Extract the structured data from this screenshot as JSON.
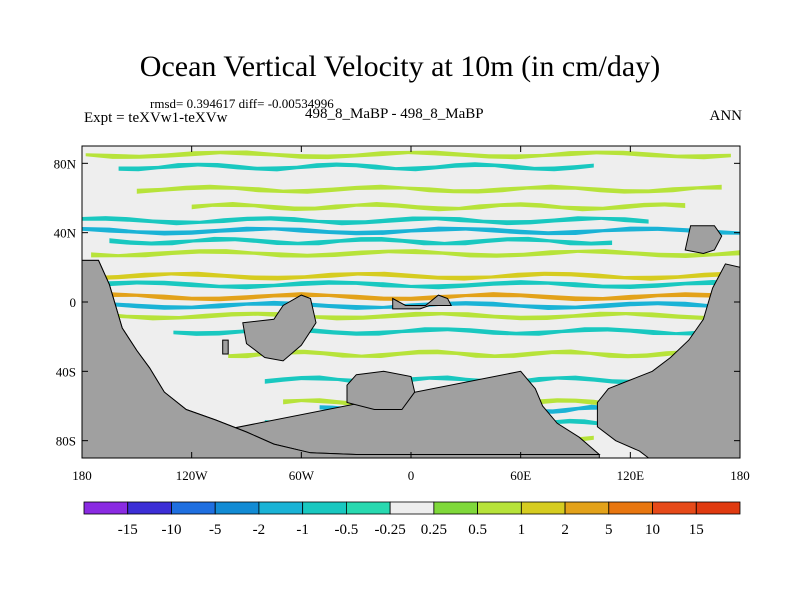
{
  "chart_data": {
    "type": "heatmap",
    "title": "Ocean Vertical Velocity at 10m (in cm/day)",
    "stats_line": "rmsd= 0.394617 diff= -0.00534996",
    "left_label": "Expt = teXVw1-teXVw",
    "center_label": "498_8_MaBP - 498_8_MaBP",
    "right_label": "ANN",
    "xlim": [
      -180,
      180
    ],
    "ylim": [
      -90,
      90
    ],
    "x_ticks": [
      {
        "value": -180,
        "label": "180"
      },
      {
        "value": -120,
        "label": "120W"
      },
      {
        "value": -60,
        "label": "60W"
      },
      {
        "value": 0,
        "label": "0"
      },
      {
        "value": 60,
        "label": "60E"
      },
      {
        "value": 120,
        "label": "120E"
      },
      {
        "value": 180,
        "label": "180"
      }
    ],
    "y_ticks": [
      {
        "value": 80,
        "label": "80N"
      },
      {
        "value": 40,
        "label": "40N"
      },
      {
        "value": 0,
        "label": "0"
      },
      {
        "value": -40,
        "label": "40S"
      },
      {
        "value": -80,
        "label": "80S"
      }
    ],
    "colorbar": {
      "labels": [
        "-15",
        "-10",
        "-5",
        "-2",
        "-1",
        "-0.5",
        "-0.25",
        "0.25",
        "0.5",
        "1",
        "2",
        "5",
        "10",
        "15"
      ],
      "colors": [
        "#8a2be2",
        "#3c2ed6",
        "#1f6fe0",
        "#128bd4",
        "#1ab3d6",
        "#19c8c0",
        "#28d9b0",
        "#eeeeee",
        "#7fd83a",
        "#b7e33a",
        "#d6cc20",
        "#e3a21a",
        "#e8760f",
        "#e64a19",
        "#e03a10"
      ]
    },
    "land_color": "#a0a0a0",
    "zero_band_color": "#eeeeee",
    "bands": [
      {
        "lat": 85,
        "lon_start": -178,
        "lon_end": 175,
        "level": "0.5"
      },
      {
        "lat": 78,
        "lon_start": -160,
        "lon_end": 100,
        "level": "-0.5"
      },
      {
        "lat": 65,
        "lon_start": -150,
        "lon_end": 170,
        "level": "0.5"
      },
      {
        "lat": 55,
        "lon_start": -120,
        "lon_end": 150,
        "level": "0.5"
      },
      {
        "lat": 47,
        "lon_start": -180,
        "lon_end": 130,
        "level": "-0.5"
      },
      {
        "lat": 41,
        "lon_start": -180,
        "lon_end": 180,
        "level": "-1"
      },
      {
        "lat": 35,
        "lon_start": -165,
        "lon_end": 110,
        "level": "-0.5"
      },
      {
        "lat": 28,
        "lon_start": -175,
        "lon_end": 180,
        "level": "0.5"
      },
      {
        "lat": 15,
        "lon_start": -175,
        "lon_end": 175,
        "level": "1"
      },
      {
        "lat": 10,
        "lon_start": -180,
        "lon_end": 180,
        "level": "-0.5"
      },
      {
        "lat": 3,
        "lon_start": -180,
        "lon_end": 180,
        "level": "2"
      },
      {
        "lat": -2,
        "lon_start": -180,
        "lon_end": 180,
        "level": "-1"
      },
      {
        "lat": -8,
        "lon_start": -170,
        "lon_end": 175,
        "level": "0.5"
      },
      {
        "lat": -17,
        "lon_start": -130,
        "lon_end": 170,
        "level": "-0.5"
      },
      {
        "lat": -30,
        "lon_start": -100,
        "lon_end": 150,
        "level": "0.5"
      },
      {
        "lat": -45,
        "lon_start": -80,
        "lon_end": 160,
        "level": "-0.5"
      },
      {
        "lat": -58,
        "lon_start": -70,
        "lon_end": 170,
        "level": "0.5"
      },
      {
        "lat": -62,
        "lon_start": -50,
        "lon_end": 120,
        "level": "-1"
      },
      {
        "lat": -70,
        "lon_start": -80,
        "lon_end": 120,
        "level": "-0.5"
      },
      {
        "lat": -78,
        "lon_start": -70,
        "lon_end": 100,
        "level": "0.5"
      },
      {
        "lat": -84,
        "lon_start": -60,
        "lon_end": 90,
        "level": "-0.5"
      }
    ],
    "land": [
      {
        "name": "west-continent",
        "lonlat": [
          [
            -180,
            24
          ],
          [
            -171,
            24
          ],
          [
            -165,
            10
          ],
          [
            -158,
            -15
          ],
          [
            -150,
            -28
          ],
          [
            -143,
            -38
          ],
          [
            -135,
            -52
          ],
          [
            -123,
            -62
          ],
          [
            -107,
            -68
          ],
          [
            -90,
            -75
          ],
          [
            -75,
            -82
          ],
          [
            -55,
            -87
          ],
          [
            -30,
            -88
          ],
          [
            5,
            -88
          ],
          [
            40,
            -88
          ],
          [
            72,
            -88
          ],
          [
            103,
            -88
          ],
          [
            92,
            -78
          ],
          [
            80,
            -70
          ],
          [
            72,
            -60
          ],
          [
            68,
            -50
          ],
          [
            60,
            -40
          ],
          [
            -180,
            -90
          ],
          [
            -180,
            24
          ]
        ]
      },
      {
        "name": "west-continent-base",
        "lonlat": [
          [
            -180,
            24
          ],
          [
            -180,
            -90
          ],
          [
            -30,
            -90
          ],
          [
            40,
            -90
          ],
          [
            103,
            -90
          ],
          [
            103,
            -88
          ],
          [
            40,
            -88
          ],
          [
            5,
            -88
          ],
          [
            -30,
            -88
          ],
          [
            -55,
            -87
          ],
          [
            -75,
            -82
          ],
          [
            -90,
            -75
          ],
          [
            -107,
            -68
          ],
          [
            -123,
            -62
          ],
          [
            -135,
            -52
          ],
          [
            -143,
            -38
          ],
          [
            -150,
            -28
          ],
          [
            -158,
            -15
          ],
          [
            -165,
            10
          ],
          [
            -171,
            24
          ]
        ]
      },
      {
        "name": "east-continent",
        "lonlat": [
          [
            180,
            20
          ],
          [
            172,
            22
          ],
          [
            165,
            8
          ],
          [
            160,
            -10
          ],
          [
            152,
            -22
          ],
          [
            142,
            -32
          ],
          [
            132,
            -40
          ],
          [
            120,
            -45
          ],
          [
            108,
            -50
          ],
          [
            102,
            -58
          ],
          [
            102,
            -72
          ],
          [
            112,
            -80
          ],
          [
            125,
            -86
          ],
          [
            130,
            -90
          ],
          [
            180,
            -90
          ]
        ]
      },
      {
        "name": "island-a",
        "lonlat": [
          [
            -92,
            -12
          ],
          [
            -75,
            -10
          ],
          [
            -70,
            -2
          ],
          [
            -60,
            4
          ],
          [
            -55,
            2
          ],
          [
            -52,
            -12
          ],
          [
            -60,
            -25
          ],
          [
            -70,
            -34
          ],
          [
            -80,
            -32
          ],
          [
            -90,
            -24
          ]
        ]
      },
      {
        "name": "island-b",
        "lonlat": [
          [
            -30,
            -42
          ],
          [
            -15,
            -40
          ],
          [
            0,
            -43
          ],
          [
            2,
            -52
          ],
          [
            -5,
            -62
          ],
          [
            -20,
            -62
          ],
          [
            -35,
            -58
          ],
          [
            -35,
            -48
          ]
        ]
      },
      {
        "name": "island-c",
        "lonlat": [
          [
            -10,
            2
          ],
          [
            -3,
            -2
          ],
          [
            8,
            -2
          ],
          [
            15,
            4
          ],
          [
            20,
            2
          ],
          [
            22,
            -2
          ],
          [
            10,
            -2
          ],
          [
            5,
            -4
          ],
          [
            -10,
            -4
          ]
        ]
      },
      {
        "name": "island-d",
        "lonlat": [
          [
            150,
            30
          ],
          [
            153,
            44
          ],
          [
            166,
            44
          ],
          [
            170,
            38
          ],
          [
            166,
            30
          ],
          [
            160,
            28
          ]
        ]
      },
      {
        "name": "island-e",
        "lonlat": [
          [
            -103,
            -22
          ],
          [
            -100,
            -22
          ],
          [
            -100,
            -30
          ],
          [
            -103,
            -30
          ]
        ]
      }
    ]
  }
}
